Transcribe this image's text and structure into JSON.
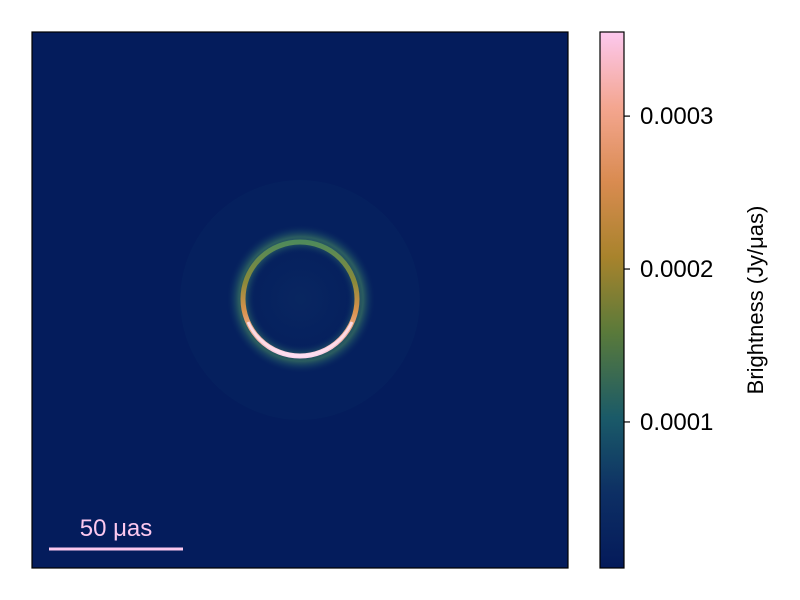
{
  "chart_data": {
    "type": "heatmap",
    "title": "",
    "xlabel": "",
    "ylabel": "",
    "description_of_field": "ring",
    "image": {
      "ring_center": [
        0,
        0
      ],
      "ring_radius_uas": 28,
      "ring_width_uas": 4,
      "glow_width_uas": 8,
      "fov_uas": 200,
      "peak_position_angle": "south"
    },
    "colorbar": {
      "label": "Brightness (Jy/μas)",
      "range": [
        4.5e-06,
        0.000355
      ],
      "ticks": [
        0.0001,
        0.0002,
        0.0003
      ],
      "tick_labels": [
        "0.0001",
        "0.0002",
        "0.0003"
      ],
      "colormap": [
        "#041a5a",
        "#0d2f64",
        "#1a5a68",
        "#5a7a3a",
        "#a8832c",
        "#d98b50",
        "#f4a690",
        "#fcc8ee"
      ]
    },
    "scalebar": {
      "label": "50 μas",
      "length_uas": 50,
      "color": "#fcc8ee"
    },
    "grid": false,
    "legend": "none"
  }
}
